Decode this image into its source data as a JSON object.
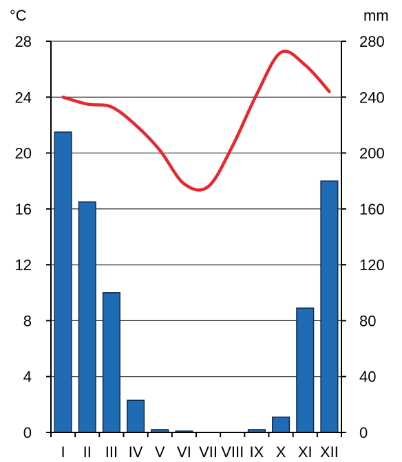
{
  "chart_data": {
    "type": "climate-diagram",
    "categories": [
      "I",
      "II",
      "III",
      "IV",
      "V",
      "VI",
      "VII",
      "VIII",
      "IX",
      "X",
      "XI",
      "XII"
    ],
    "series": [
      {
        "kind": "bar",
        "axis": "right",
        "values": [
          215,
          165,
          100,
          23,
          2,
          1,
          0,
          0,
          2,
          11,
          89,
          180
        ],
        "color": "#1f6cb5"
      },
      {
        "kind": "line",
        "axis": "left",
        "values": [
          24,
          23.5,
          23.3,
          22,
          20.2,
          17.8,
          17.6,
          20.5,
          24.2,
          27.2,
          26.3,
          24.4
        ],
        "color": "#e8262b"
      }
    ],
    "y_left": {
      "unit": "°C",
      "ylim": [
        0,
        28
      ],
      "ticks": [
        0,
        4,
        8,
        12,
        16,
        20,
        24,
        28
      ]
    },
    "y_right": {
      "unit": "mm",
      "ylim": [
        0,
        280
      ],
      "ticks": [
        0,
        40,
        80,
        120,
        160,
        200,
        240,
        280
      ]
    },
    "grid": true
  }
}
